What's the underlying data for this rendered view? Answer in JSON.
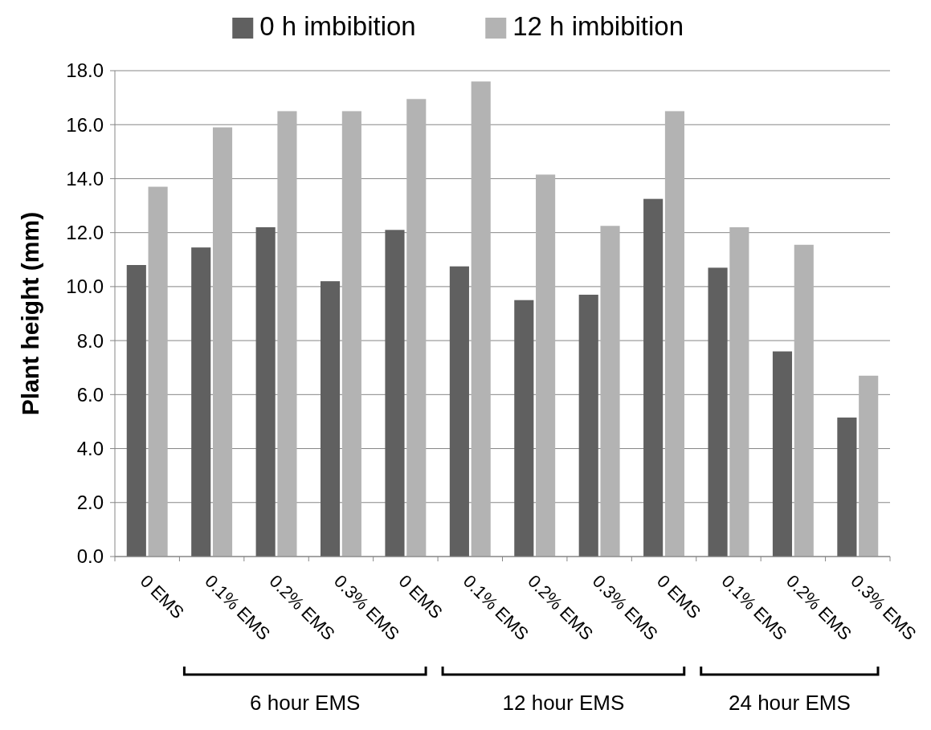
{
  "chart_data": {
    "type": "bar",
    "ylabel": "Plant height (mm)",
    "categories": [
      "0 EMS",
      "0.1% EMS",
      "0.2% EMS",
      "0.3% EMS",
      "0 EMS",
      "0.1% EMS",
      "0.2% EMS",
      "0.3% EMS",
      "0 EMS",
      "0.1% EMS",
      "0.2% EMS",
      "0.3% EMS"
    ],
    "series": [
      {
        "name": "0 h imbibition",
        "color": "#606060",
        "values": [
          10.8,
          11.45,
          12.2,
          10.2,
          12.1,
          10.75,
          9.5,
          9.7,
          13.25,
          10.7,
          7.6,
          5.15
        ]
      },
      {
        "name": "12 h imbibition",
        "color": "#b3b3b3",
        "values": [
          13.7,
          15.9,
          16.5,
          16.5,
          16.95,
          17.6,
          14.15,
          12.25,
          16.5,
          12.2,
          11.55,
          6.7
        ]
      }
    ],
    "ylim": [
      0,
      18
    ],
    "yticks": [
      {
        "value": 0,
        "label": "0.0"
      },
      {
        "value": 2,
        "label": "2.0"
      },
      {
        "value": 4,
        "label": "4.0"
      },
      {
        "value": 6,
        "label": "6.0"
      },
      {
        "value": 8,
        "label": "8.0"
      },
      {
        "value": 10,
        "label": "10.0"
      },
      {
        "value": 12,
        "label": "12.0"
      },
      {
        "value": 14,
        "label": "14.0"
      },
      {
        "value": 16,
        "label": "16.0"
      },
      {
        "value": 18,
        "label": "18.0"
      }
    ],
    "grid": "y",
    "legend": "top",
    "annotations": [
      "6 hour EMS",
      "12 hour EMS",
      "24 hour EMS"
    ]
  }
}
